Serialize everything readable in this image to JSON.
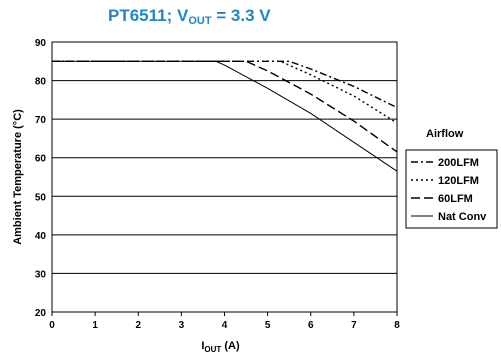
{
  "header": {
    "title_main": "PT6511; V",
    "title_sub": "OUT",
    "title_rest": " = 3.3 V"
  },
  "chart_data": {
    "type": "line",
    "xlabel_main": "I",
    "xlabel_sub": "OUT",
    "xlabel_rest": "  (A)",
    "ylabel": "Ambient Temperature (°C)",
    "xlim": [
      0,
      8
    ],
    "ylim": [
      20,
      90
    ],
    "xticks": [
      "0",
      "1",
      "2",
      "3",
      "4",
      "5",
      "6",
      "7",
      "8"
    ],
    "yticks": [
      "20",
      "30",
      "40",
      "50",
      "60",
      "70",
      "80",
      "90"
    ],
    "grid": true,
    "legend_title": "Airflow",
    "legend_position": "right",
    "series": [
      {
        "name": "200LFM",
        "style": "dash-dot",
        "points": [
          [
            0,
            85
          ],
          [
            5.5,
            85
          ],
          [
            6,
            83
          ],
          [
            7,
            78.5
          ],
          [
            8,
            73
          ]
        ]
      },
      {
        "name": "120LFM",
        "style": "dotted",
        "points": [
          [
            0,
            85
          ],
          [
            5.3,
            85
          ],
          [
            6,
            81.5
          ],
          [
            7,
            76
          ],
          [
            8,
            69
          ]
        ]
      },
      {
        "name": "60LFM",
        "style": "dashed",
        "points": [
          [
            0,
            85
          ],
          [
            4.5,
            85
          ],
          [
            5,
            82.5
          ],
          [
            6,
            76.5
          ],
          [
            7,
            69.5
          ],
          [
            8,
            61.5
          ]
        ]
      },
      {
        "name": "Nat Conv",
        "style": "solid",
        "points": [
          [
            0,
            85
          ],
          [
            3.8,
            85
          ],
          [
            4,
            84
          ],
          [
            5,
            78
          ],
          [
            6,
            71.5
          ],
          [
            7,
            64
          ],
          [
            8,
            56.5
          ]
        ]
      }
    ]
  }
}
